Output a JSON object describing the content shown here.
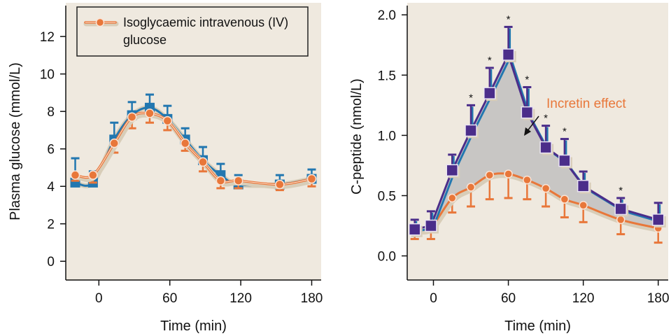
{
  "chart_data": [
    {
      "type": "line",
      "xlabel": "Time (min)",
      "ylabel": "Plasma glucose (mmol/L)",
      "xticks": [
        "0",
        "60",
        "120",
        "180"
      ],
      "yticks": [
        "0",
        "2",
        "4",
        "6",
        "8",
        "10",
        "12"
      ],
      "xlim": [
        -28,
        188
      ],
      "ylim": [
        -1.0,
        13.8
      ],
      "legend": {
        "position": "top-left",
        "line1": "Isoglycaemic intravenous (IV)",
        "line2": "glucose"
      },
      "colors": {
        "iv": "#e8773a",
        "oral": "#2277b0",
        "background": "#efe9df"
      },
      "series": [
        {
          "name": "Isoglycaemic intravenous (IV) glucose",
          "x": [
            -20,
            -5,
            13,
            28,
            43,
            58,
            73,
            88,
            103,
            118,
            153,
            180
          ],
          "y": [
            4.6,
            4.6,
            6.3,
            7.7,
            7.9,
            7.5,
            6.3,
            5.3,
            4.3,
            4.3,
            4.1,
            4.4
          ],
          "err": [
            0.3,
            0.4,
            0.5,
            0.6,
            0.5,
            0.5,
            0.4,
            0.5,
            0.4,
            0.4,
            0.3,
            0.4
          ]
        },
        {
          "x": [
            -20,
            -5,
            13,
            28,
            43,
            58,
            73,
            88,
            103,
            118,
            153,
            180
          ],
          "y": [
            4.2,
            4.2,
            6.5,
            7.8,
            8.2,
            7.6,
            6.5,
            5.4,
            4.6,
            4.1,
            4.1,
            4.4
          ],
          "err": [
            1.3,
            0.6,
            0.9,
            0.7,
            0.7,
            0.7,
            0.6,
            0.7,
            0.6,
            0.5,
            0.5,
            0.5
          ]
        }
      ]
    },
    {
      "type": "line",
      "xlabel": "Time (min)",
      "ylabel": "C-peptide (nmol/L)",
      "xticks": [
        "0",
        "60",
        "120",
        "180"
      ],
      "yticks": [
        "0.0",
        "0.5",
        "1.0",
        "1.5",
        "2.0"
      ],
      "xlim": [
        -21,
        188
      ],
      "ylim": [
        -0.2,
        2.1
      ],
      "annotation": "Incretin effect",
      "colors": {
        "iv": "#e8773a",
        "oral": "#4b2d8a",
        "oral_shadow": "#2277b0",
        "shade": "#c8c6c4",
        "background": "#efe9df",
        "annotation": "#e8773a"
      },
      "series": [
        {
          "x": [
            -15,
            -2,
            15,
            30,
            45,
            60,
            75,
            90,
            105,
            120,
            150,
            180
          ],
          "y": [
            0.22,
            0.25,
            0.71,
            1.04,
            1.35,
            1.67,
            1.19,
            0.9,
            0.79,
            0.58,
            0.39,
            0.3
          ],
          "err": [
            0.08,
            0.12,
            0.13,
            0.21,
            0.21,
            0.23,
            0.21,
            0.18,
            0.18,
            0.12,
            0.09,
            0.14
          ],
          "significant": [
            false,
            false,
            false,
            true,
            true,
            true,
            true,
            true,
            true,
            false,
            true,
            false
          ]
        },
        {
          "name": "Isoglycaemic intravenous (IV) glucose",
          "x": [
            -15,
            -2,
            15,
            30,
            45,
            60,
            75,
            90,
            105,
            120,
            150,
            180
          ],
          "y": [
            0.22,
            0.24,
            0.48,
            0.57,
            0.67,
            0.68,
            0.63,
            0.56,
            0.47,
            0.42,
            0.3,
            0.23
          ],
          "err": [
            0.08,
            0.1,
            0.12,
            0.16,
            0.2,
            0.2,
            0.16,
            0.15,
            0.15,
            0.14,
            0.12,
            0.12
          ]
        }
      ]
    }
  ]
}
